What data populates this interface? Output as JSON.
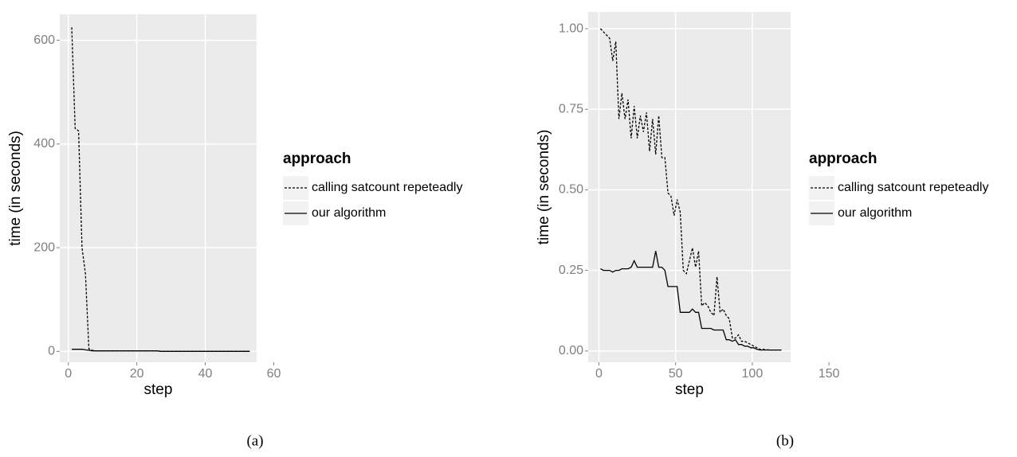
{
  "chart_data": [
    {
      "type": "line",
      "caption": "(a)",
      "xlabel": "step",
      "ylabel": "time (in seconds)",
      "legend_title": "approach",
      "legend": "right",
      "grid": true,
      "xlim": [
        -2.5,
        55
      ],
      "xticks": [
        0,
        20,
        40,
        60
      ],
      "ylim": [
        -21,
        650
      ],
      "yticks": [
        0,
        200,
        400,
        600
      ],
      "x": [
        1,
        2,
        3,
        4,
        5,
        6,
        7,
        8,
        9,
        10,
        11,
        12,
        13,
        14,
        15,
        16,
        17,
        18,
        19,
        20,
        21,
        22,
        23,
        24,
        25,
        26,
        27,
        28,
        29,
        30,
        31,
        32,
        33,
        34,
        35,
        36,
        37,
        38,
        39,
        40,
        41,
        42,
        43,
        44,
        45,
        46,
        47,
        48,
        49,
        50,
        51,
        52,
        53
      ],
      "series": [
        {
          "name": "calling satcount repeteadly",
          "color": "#000000",
          "dash": "dashed",
          "values": [
            625,
            430,
            425,
            200,
            150,
            5,
            2,
            1,
            1,
            1,
            1,
            1,
            1,
            1,
            1,
            1,
            1,
            1,
            1,
            1,
            1,
            1,
            1,
            1,
            1,
            1,
            0,
            0,
            0,
            0,
            0,
            0,
            0,
            0,
            0,
            0,
            0,
            0,
            0,
            0,
            0,
            0,
            0,
            0,
            0,
            0,
            0,
            0,
            0,
            0,
            0,
            0,
            0
          ]
        },
        {
          "name": "our algorithm",
          "color": "#000000",
          "dash": "solid",
          "values": [
            4,
            4,
            4,
            4,
            3,
            2,
            1,
            1,
            1,
            1,
            1,
            1,
            1,
            1,
            1,
            1,
            1,
            1,
            1,
            1,
            1,
            1,
            1,
            1,
            1,
            1,
            0,
            0,
            0,
            0,
            0,
            0,
            0,
            0,
            0,
            0,
            0,
            0,
            0,
            0,
            0,
            0,
            0,
            0,
            0,
            0,
            0,
            0,
            0,
            0,
            0,
            0,
            0
          ]
        }
      ]
    },
    {
      "type": "line",
      "caption": "(b)",
      "xlabel": "step",
      "ylabel": "time (in seconds)",
      "legend_title": "approach",
      "legend": "right",
      "grid": true,
      "xlim": [
        -7,
        125
      ],
      "xticks": [
        0,
        50,
        100,
        150
      ],
      "ylim": [
        -0.035,
        1.052
      ],
      "yticks": [
        {
          "value": 0,
          "label": "0.00"
        },
        {
          "value": 0.25,
          "label": "0.25"
        },
        {
          "value": 0.5,
          "label": "0.50"
        },
        {
          "value": 0.75,
          "label": "0.75"
        },
        {
          "value": 1,
          "label": "1.00"
        }
      ],
      "x": [
        1,
        3,
        5,
        7,
        9,
        11,
        13,
        15,
        17,
        19,
        21,
        23,
        25,
        27,
        29,
        31,
        33,
        35,
        37,
        39,
        41,
        43,
        45,
        47,
        49,
        51,
        53,
        55,
        57,
        59,
        61,
        63,
        65,
        67,
        69,
        71,
        73,
        75,
        77,
        79,
        81,
        83,
        85,
        87,
        89,
        91,
        93,
        95,
        97,
        99,
        101,
        103,
        105,
        107,
        109,
        111,
        113,
        115,
        117,
        119
      ],
      "series": [
        {
          "name": "calling satcount repeteadly",
          "color": "#000000",
          "dash": "dashed",
          "values": [
            1.0,
            0.99,
            0.98,
            0.97,
            0.9,
            0.96,
            0.72,
            0.8,
            0.72,
            0.78,
            0.66,
            0.76,
            0.66,
            0.73,
            0.68,
            0.74,
            0.62,
            0.72,
            0.61,
            0.73,
            0.6,
            0.6,
            0.49,
            0.48,
            0.42,
            0.47,
            0.43,
            0.25,
            0.24,
            0.28,
            0.32,
            0.26,
            0.31,
            0.14,
            0.15,
            0.14,
            0.12,
            0.11,
            0.23,
            0.12,
            0.13,
            0.11,
            0.1,
            0.04,
            0.04,
            0.05,
            0.03,
            0.03,
            0.025,
            0.02,
            0.015,
            0.01,
            0.005,
            0.005,
            0.004,
            0.003,
            0.003,
            0.003,
            0.003,
            0.003
          ]
        },
        {
          "name": "our algorithm",
          "color": "#000000",
          "dash": "solid",
          "values": [
            0.255,
            0.25,
            0.25,
            0.25,
            0.245,
            0.25,
            0.25,
            0.255,
            0.255,
            0.255,
            0.26,
            0.28,
            0.26,
            0.26,
            0.26,
            0.26,
            0.26,
            0.26,
            0.31,
            0.26,
            0.26,
            0.25,
            0.2,
            0.2,
            0.2,
            0.2,
            0.12,
            0.12,
            0.12,
            0.12,
            0.13,
            0.12,
            0.12,
            0.07,
            0.07,
            0.07,
            0.07,
            0.065,
            0.065,
            0.065,
            0.065,
            0.035,
            0.035,
            0.03,
            0.035,
            0.02,
            0.02,
            0.015,
            0.015,
            0.01,
            0.01,
            0.005,
            0.003,
            0.003,
            0.003,
            0.003,
            0.003,
            0.003,
            0.003,
            0.003
          ]
        }
      ]
    }
  ]
}
